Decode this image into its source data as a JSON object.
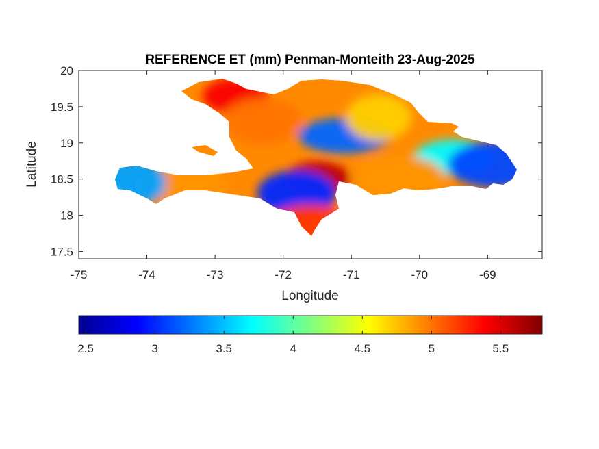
{
  "chart_data": {
    "type": "heatmap",
    "title": "REFERENCE ET (mm) Penman-Monteith 23-Aug-2025",
    "xlabel": "Longitude",
    "ylabel": "Latitude",
    "xlim": [
      -75,
      -68.2
    ],
    "ylim": [
      17.4,
      20
    ],
    "x_ticks": [
      -75,
      -74,
      -73,
      -72,
      -71,
      -70,
      -69
    ],
    "x_tick_labels": [
      "-75",
      "-74",
      "-73",
      "-72",
      "-71",
      "-70",
      "-69"
    ],
    "y_ticks": [
      17.5,
      18,
      18.5,
      19,
      19.5,
      20
    ],
    "y_tick_labels": [
      "17.5",
      "18",
      "18.5",
      "19",
      "19.5",
      "20"
    ],
    "grid": false,
    "colormap": "jet",
    "colorbar": {
      "orientation": "horizontal",
      "placement": "below",
      "range": [
        2.45,
        5.8
      ],
      "ticks": [
        2.5,
        3,
        3.5,
        4,
        4.5,
        5,
        5.5
      ],
      "tick_labels": [
        "2.5",
        "3",
        "3.5",
        "4",
        "4.5",
        "5",
        "5.5"
      ]
    },
    "regions": [
      {
        "lon": -72.7,
        "lat": 19.65,
        "value": 5.4
      },
      {
        "lon": -72.3,
        "lat": 19.3,
        "value": 5.0
      },
      {
        "lon": -71.1,
        "lat": 19.1,
        "value": 3.2
      },
      {
        "lon": -70.6,
        "lat": 19.35,
        "value": 4.7
      },
      {
        "lon": -69.5,
        "lat": 18.8,
        "value": 3.7
      },
      {
        "lon": -68.9,
        "lat": 18.7,
        "value": 3.1
      },
      {
        "lon": -71.5,
        "lat": 18.5,
        "value": 5.6
      },
      {
        "lon": -71.8,
        "lat": 18.3,
        "value": 3.0
      },
      {
        "lon": -73.5,
        "lat": 18.4,
        "value": 4.9
      },
      {
        "lon": -74.2,
        "lat": 18.45,
        "value": 3.4
      },
      {
        "lon": -71.6,
        "lat": 17.9,
        "value": 5.2
      },
      {
        "lon": -70.3,
        "lat": 18.5,
        "value": 4.9
      }
    ]
  }
}
